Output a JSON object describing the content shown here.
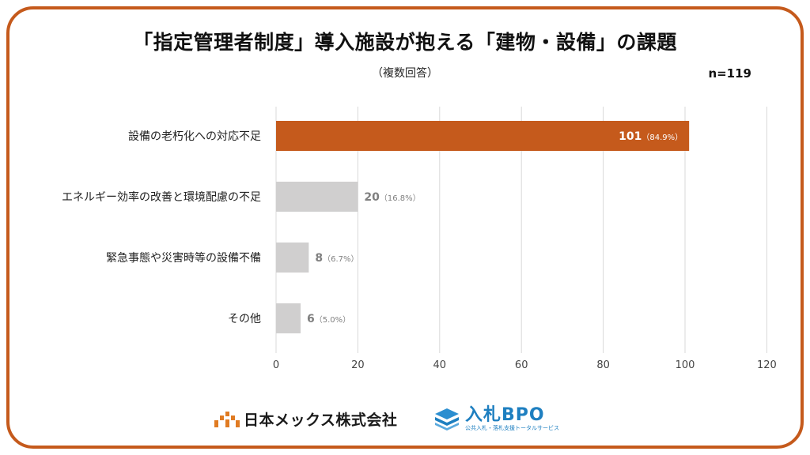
{
  "title": "「指定管理者制度」導入施設が抱える「建物・設備」の課題",
  "subtitle": "（複数回答）",
  "sample_size": "n=119",
  "colors": {
    "frame": "#c55a1c",
    "highlight_bar": "#c55a1c",
    "bar": "#d0cfcf",
    "grid": "#d9d9d9",
    "label_gray": "#7f7f7f"
  },
  "chart_data": {
    "type": "bar",
    "orientation": "horizontal",
    "categories": [
      "設備の老朽化への対応不足",
      "エネルギー効率の改善と環境配慮の不足",
      "緊急事態や災害時等の設備不備",
      "その他"
    ],
    "values": [
      101,
      20,
      8,
      6
    ],
    "percent_labels": [
      "（84.9%）",
      "（16.8%）",
      "（6.7%）",
      "（5.0%）"
    ],
    "xlim": [
      0,
      120
    ],
    "xticks": [
      0,
      20,
      40,
      60,
      80,
      100,
      120
    ],
    "grid": true,
    "highlight_index": 0
  },
  "footer": {
    "company_logo": "日本メックス株式会社",
    "service_logo": "入札BPO",
    "service_tagline": "公共入札・落札支援トータルサービス"
  }
}
